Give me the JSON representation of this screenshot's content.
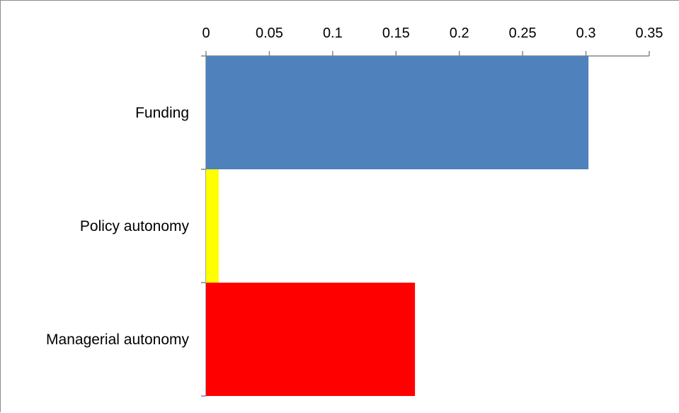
{
  "chart_data": {
    "type": "bar",
    "orientation": "horizontal",
    "title": "",
    "xlabel": "",
    "ylabel": "",
    "categories": [
      "Funding",
      "Policy autonomy",
      "Managerial autonomy"
    ],
    "values": [
      0.302,
      0.01,
      0.165
    ],
    "colors": [
      "#4f81bd",
      "#ffff00",
      "#ff0000"
    ],
    "xlim": [
      0,
      0.35
    ],
    "x_ticks": [
      "0",
      "0.05",
      "0.1",
      "0.15",
      "0.2",
      "0.25",
      "0.3",
      "0.35"
    ],
    "x_axis_position": "top",
    "grid": false,
    "legend": "none"
  }
}
